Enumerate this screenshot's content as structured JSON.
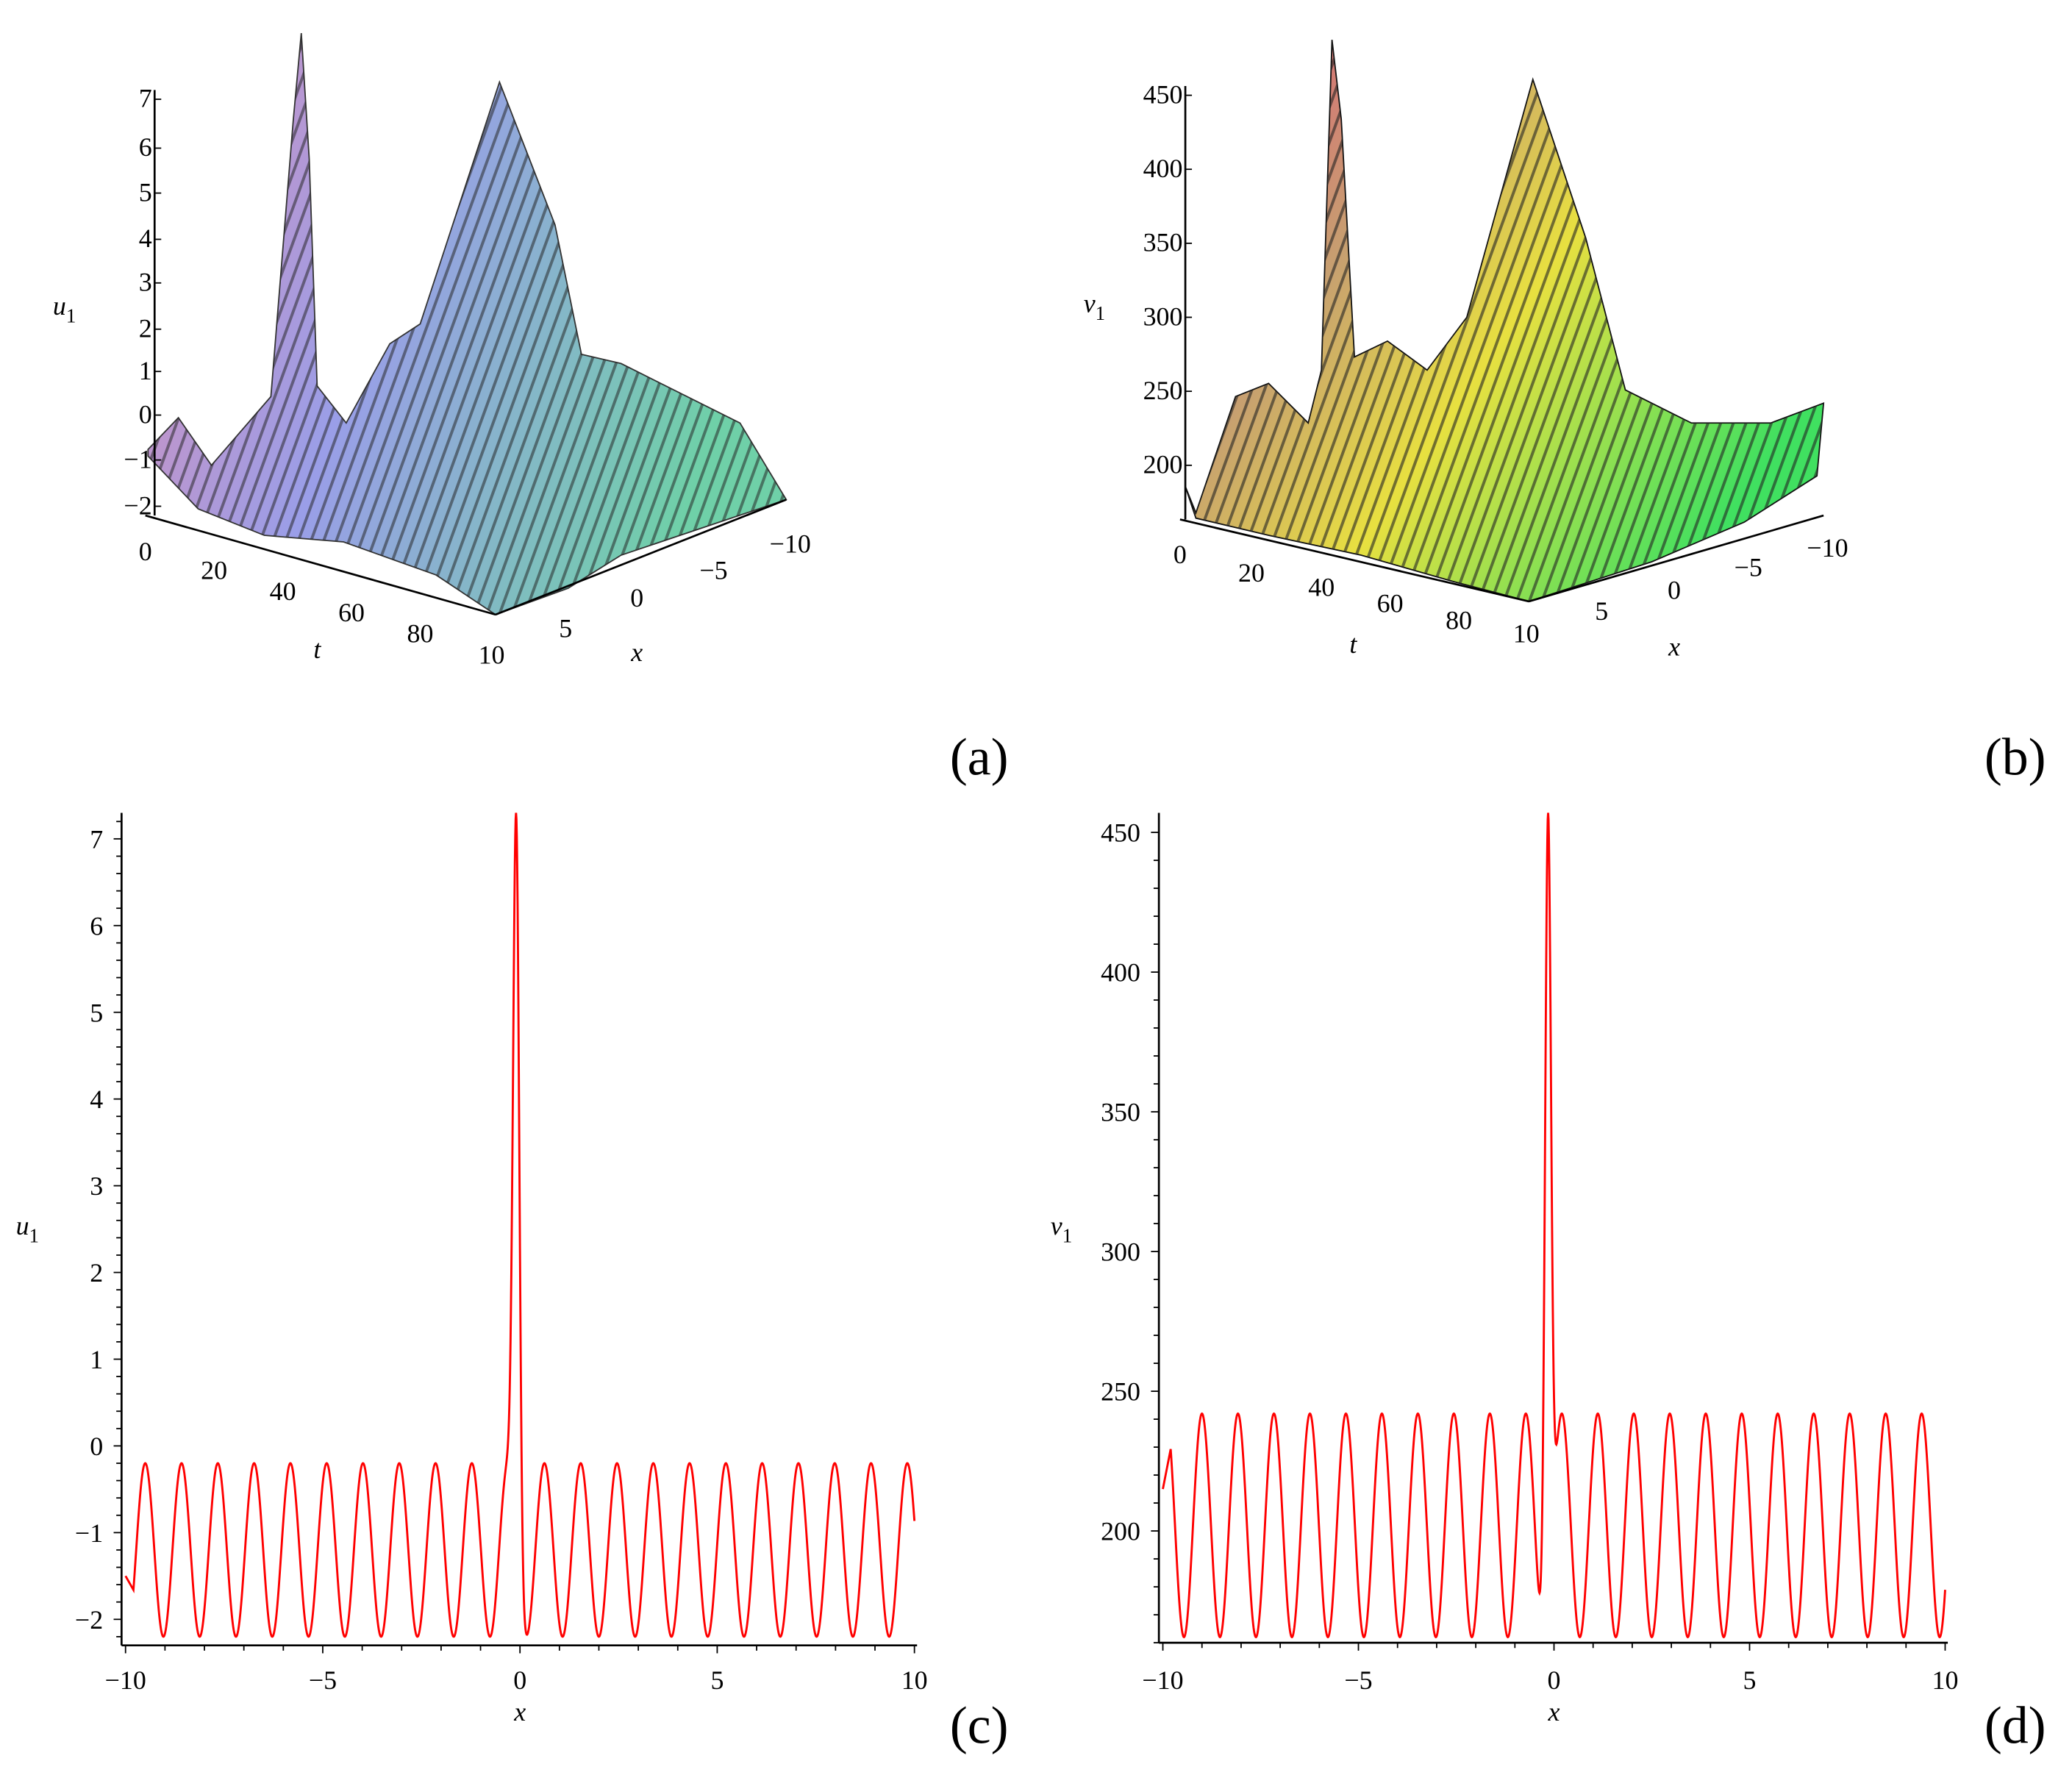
{
  "panels": [
    "(a)",
    "(b)",
    "(c)",
    "(d)"
  ],
  "colors": {
    "curve": "#ff0000",
    "axis": "#000000"
  },
  "chart_data": [
    {
      "type": "surface",
      "panel": "(a)",
      "zlabel": "u",
      "zlabel_sub": "1",
      "xlabel": "x",
      "tlabel": "t",
      "z_ticks": [
        "7",
        "6",
        "5",
        "4",
        "3",
        "2",
        "1",
        "0",
        "−1",
        "−2"
      ],
      "t_ticks": [
        "0",
        "20",
        "40",
        "60",
        "80"
      ],
      "x_ticks": [
        "10",
        "5",
        "0",
        "−5",
        "−10"
      ],
      "zlim": [
        -2,
        7.3
      ],
      "tlim": [
        0,
        100
      ],
      "xlim": [
        -10,
        10
      ]
    },
    {
      "type": "surface",
      "panel": "(b)",
      "zlabel": "v",
      "zlabel_sub": "1",
      "xlabel": "x",
      "tlabel": "t",
      "z_ticks": [
        "450",
        "400",
        "350",
        "300",
        "250",
        "200"
      ],
      "t_ticks": [
        "0",
        "20",
        "40",
        "60",
        "80"
      ],
      "x_ticks": [
        "10",
        "5",
        "0",
        "−5",
        "−10"
      ],
      "zlim": [
        160,
        457
      ],
      "tlim": [
        0,
        100
      ],
      "xlim": [
        -10,
        10
      ]
    },
    {
      "type": "line",
      "panel": "(c)",
      "xlabel": "x",
      "ylabel": "u",
      "ylabel_sub": "1",
      "xlim": [
        -10,
        10
      ],
      "ylim": [
        -2.3,
        7.3
      ],
      "x_ticks": [
        -10,
        -5,
        0,
        5,
        10
      ],
      "x_tick_labels": [
        "−10",
        "−5",
        "0",
        "5",
        "10"
      ],
      "y_ticks": [
        -2,
        -1,
        0,
        1,
        2,
        3,
        4,
        5,
        6,
        7
      ],
      "y_tick_labels": [
        "−2",
        "−1",
        "0",
        "1",
        "2",
        "3",
        "4",
        "5",
        "6",
        "7"
      ],
      "series": [
        {
          "name": "u1",
          "oscillation": {
            "max": -0.2,
            "min": -2.2,
            "period": 0.92,
            "first_peak_x": -9.5
          },
          "peak": {
            "x": -0.1,
            "y": 7.3
          },
          "start": {
            "x": -10,
            "y": -1.5
          },
          "end": {
            "x": 10,
            "y": -0.25
          }
        }
      ]
    },
    {
      "type": "line",
      "panel": "(d)",
      "xlabel": "x",
      "ylabel": "v",
      "ylabel_sub": "1",
      "xlim": [
        -10,
        10
      ],
      "ylim": [
        160,
        457
      ],
      "x_ticks": [
        -10,
        -5,
        0,
        5,
        10
      ],
      "x_tick_labels": [
        "−10",
        "−5",
        "0",
        "5",
        "10"
      ],
      "y_ticks": [
        200,
        250,
        300,
        350,
        400,
        450
      ],
      "y_tick_labels": [
        "200",
        "250",
        "300",
        "350",
        "400",
        "450"
      ],
      "series": [
        {
          "name": "v1",
          "oscillation": {
            "max": 242,
            "min": 162,
            "period": 0.92,
            "first_peak_x": -9.0
          },
          "peak": {
            "x": -0.15,
            "y": 457
          },
          "start": {
            "x": -10,
            "y": 215
          },
          "end": {
            "x": 10,
            "y": 163
          }
        }
      ]
    }
  ]
}
